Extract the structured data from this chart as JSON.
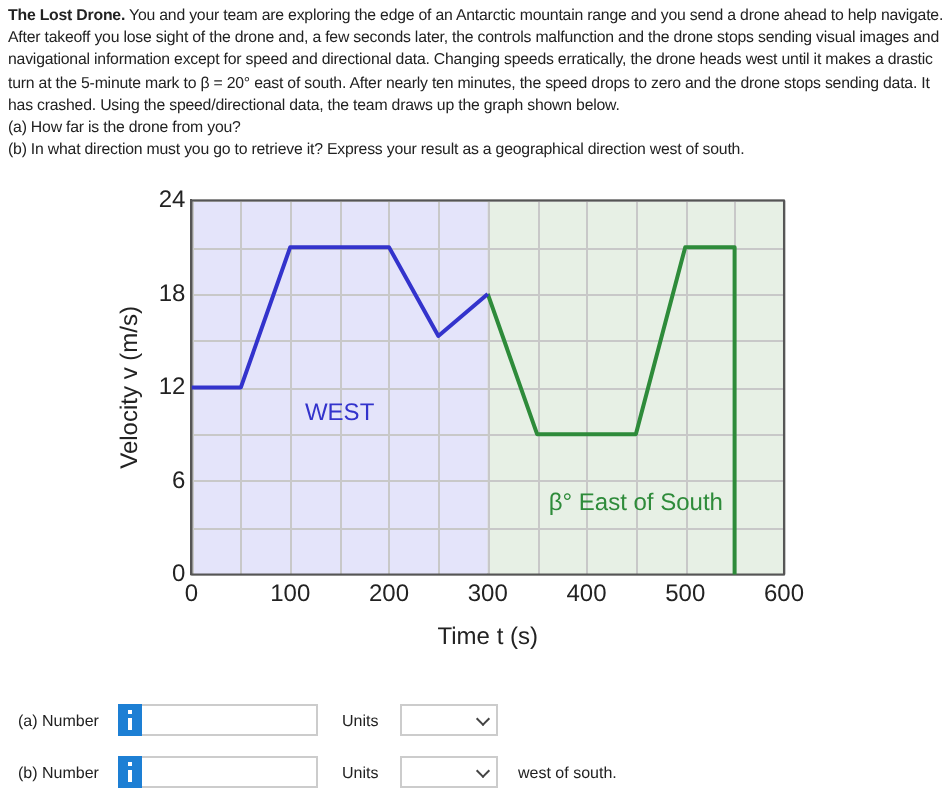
{
  "chart_data": {
    "type": "line",
    "title": "The Lost Drone.",
    "subtitle": "You and your team are exploring the edge of an Antarctic mountain range and you send a drone ahead to help navigate. After takeoff you lose sight of the drone and, a few seconds later, the controls malfunction and the drone stops sending visual images and navigational information except for speed and directional data. Changing speeds erratically, the drone heads west until it makes a drastic turn at the 5-minute mark to β = 20° east of south. After nearly ten minutes, the speed drops to zero and the drone stops sending data. It has crashed. Using the speed/directional data, the team draws up the graph shown below.",
    "xlabel": "Time t (s)",
    "ylabel": "Velocity v (m/s)",
    "annotations": [
      "(a) How far is the drone from you?",
      "(b) In what direction must you go to retrieve it? Express your result as a geographical direction west of south.",
      "(a) Number",
      "Units",
      "(b) Number",
      "Units",
      "west of south."
    ],
    "series": [
      {
        "color": "#3333cc",
        "x": [
          0,
          50,
          100,
          200,
          250,
          300
        ],
        "values": [
          12,
          12,
          21,
          21,
          15.3,
          18
        ]
      },
      {
        "color": "#2e8b3a",
        "x": [
          300,
          350,
          450,
          500,
          550,
          550
        ],
        "values": [
          18,
          9,
          9,
          21,
          21,
          0
        ]
      }
    ],
    "bands": [
      {
        "axis": "x",
        "from": 0,
        "to": 300,
        "label": "WEST",
        "color": "#e4e4fa"
      },
      {
        "axis": "x",
        "from": 300,
        "to": 600,
        "label": "β° East of South",
        "color": "#e7f0e5"
      }
    ],
    "xlim": [
      0,
      600
    ],
    "ylim": [
      0,
      24
    ],
    "xticks": [
      0,
      {
        "value": 50,
        "label": null
      },
      100,
      {
        "value": 150,
        "label": null
      },
      200,
      {
        "value": 250,
        "label": null
      },
      300,
      {
        "value": 350,
        "label": null
      },
      400,
      {
        "value": 450,
        "label": null
      },
      500,
      {
        "value": 550,
        "label": null
      },
      600
    ],
    "yticks": [
      0,
      {
        "value": 3,
        "label": null
      },
      6,
      {
        "value": 9,
        "label": null
      },
      12,
      {
        "value": 15,
        "label": null
      },
      18,
      {
        "value": 21,
        "label": null
      },
      24
    ],
    "grid": true,
    "legend": false,
    "marker": "none",
    "line_style": "solid"
  }
}
